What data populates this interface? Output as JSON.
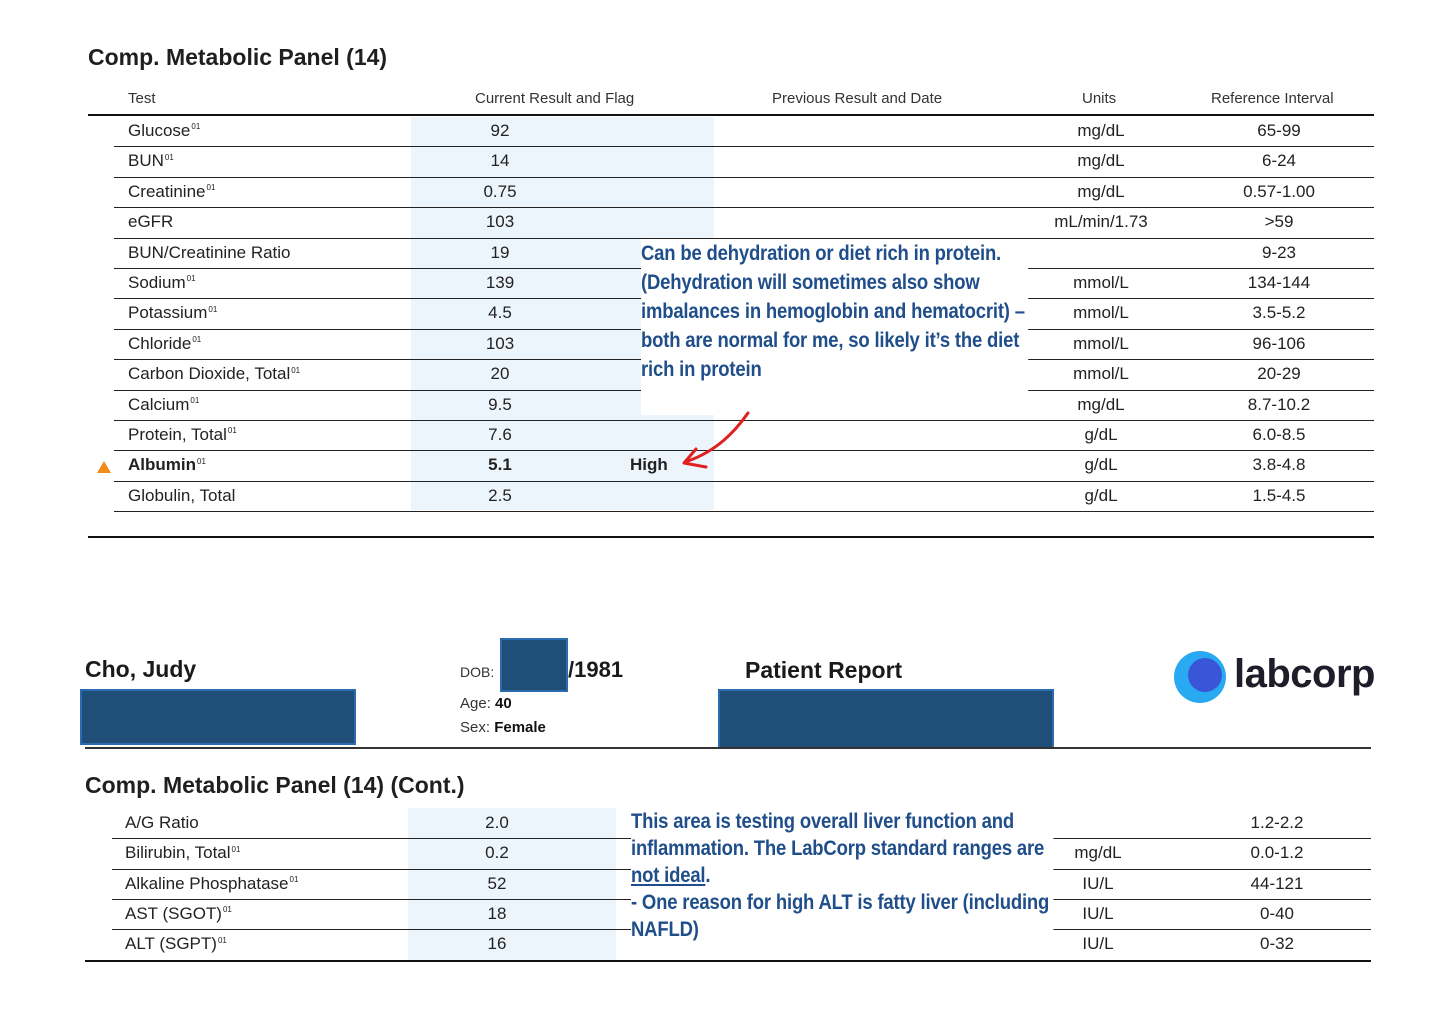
{
  "panel1": {
    "title": "Comp. Metabolic Panel (14)",
    "headers": {
      "test": "Test",
      "current": "Current Result and Flag",
      "previous": "Previous Result and Date",
      "units": "Units",
      "reference": "Reference Interval"
    },
    "rows": [
      {
        "test": "Glucose",
        "sup": "01",
        "result": "92",
        "flag": "",
        "units": "mg/dL",
        "ref": "65-99"
      },
      {
        "test": "BUN",
        "sup": "01",
        "result": "14",
        "flag": "",
        "units": "mg/dL",
        "ref": "6-24"
      },
      {
        "test": "Creatinine",
        "sup": "01",
        "result": "0.75",
        "flag": "",
        "units": "mg/dL",
        "ref": "0.57-1.00"
      },
      {
        "test": "eGFR",
        "sup": "",
        "result": "103",
        "flag": "",
        "units": "mL/min/1.73",
        "ref": ">59"
      },
      {
        "test": "BUN/Creatinine Ratio",
        "sup": "",
        "result": "19",
        "flag": "",
        "units": "",
        "ref": "9-23"
      },
      {
        "test": "Sodium",
        "sup": "01",
        "result": "139",
        "flag": "",
        "units": "mmol/L",
        "ref": "134-144"
      },
      {
        "test": "Potassium",
        "sup": "01",
        "result": "4.5",
        "flag": "",
        "units": "mmol/L",
        "ref": "3.5-5.2"
      },
      {
        "test": "Chloride",
        "sup": "01",
        "result": "103",
        "flag": "",
        "units": "mmol/L",
        "ref": "96-106"
      },
      {
        "test": "Carbon Dioxide, Total",
        "sup": "01",
        "result": "20",
        "flag": "",
        "units": "mmol/L",
        "ref": "20-29"
      },
      {
        "test": "Calcium",
        "sup": "01",
        "result": "9.5",
        "flag": "",
        "units": "mg/dL",
        "ref": "8.7-10.2"
      },
      {
        "test": "Protein, Total",
        "sup": "01",
        "result": "7.6",
        "flag": "",
        "units": "g/dL",
        "ref": "6.0-8.5"
      },
      {
        "test": "Albumin",
        "sup": "01",
        "result": "5.1",
        "flag": "High",
        "units": "g/dL",
        "ref": "3.8-4.8"
      },
      {
        "test": "Globulin, Total",
        "sup": "",
        "result": "2.5",
        "flag": "",
        "units": "g/dL",
        "ref": "1.5-4.5"
      }
    ],
    "note": "Can be dehydration or diet rich in protein. (Dehydration will sometimes also show imbalances in hemoglobin and hematocrit) – both are normal for me, so likely it’s the diet rich in protein"
  },
  "patient": {
    "name": "Cho, Judy",
    "dob_label": "DOB:",
    "dob_value": "/1981",
    "age_label": "Age:",
    "age_value": "40",
    "sex_label": "Sex:",
    "sex_value": "Female",
    "report_title": "Patient Report",
    "logo_text": "labcorp",
    "logo_color": "#1e90ff"
  },
  "panel2": {
    "title": "Comp. Metabolic Panel (14) (Cont.)",
    "rows": [
      {
        "test": "A/G Ratio",
        "sup": "",
        "result": "2.0",
        "units": "",
        "ref": "1.2-2.2"
      },
      {
        "test": "Bilirubin, Total",
        "sup": "01",
        "result": "0.2",
        "units": "mg/dL",
        "ref": "0.0-1.2"
      },
      {
        "test": "Alkaline Phosphatase",
        "sup": "01",
        "result": "52",
        "units": "IU/L",
        "ref": "44-121"
      },
      {
        "test": "AST (SGOT)",
        "sup": "01",
        "result": "18",
        "units": "IU/L",
        "ref": "0-40"
      },
      {
        "test": "ALT (SGPT)",
        "sup": "01",
        "result": "16",
        "units": "IU/L",
        "ref": "0-32"
      }
    ],
    "note_part1": "This area is testing overall liver function and inflammation. The LabCorp standard ranges are ",
    "note_underlined": "not ideal",
    "note_part2": ".",
    "note_line2": "- One reason for high ALT is fatty liver (including NAFLD)"
  }
}
